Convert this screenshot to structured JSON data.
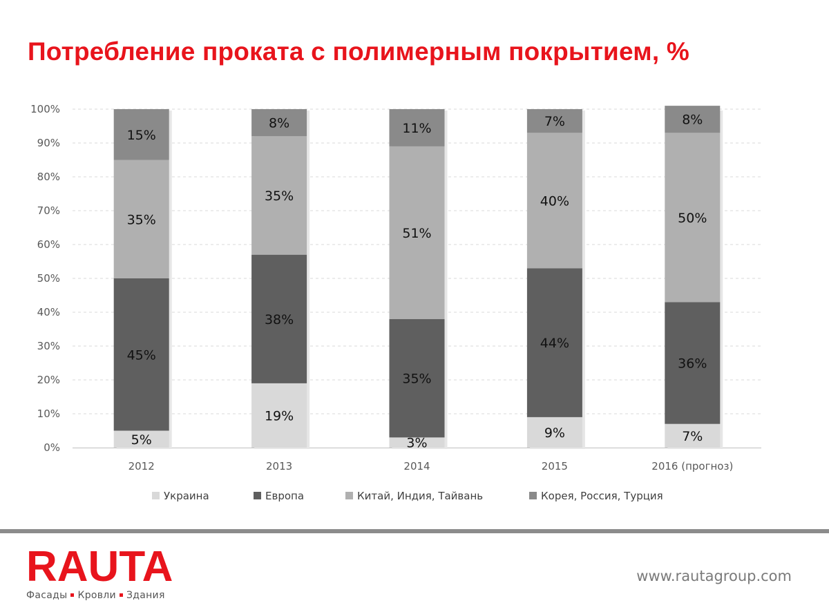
{
  "header": {
    "title": "Потребление проката с полимерным покрытием, %"
  },
  "chart_data": {
    "type": "bar",
    "stacked": true,
    "categories": [
      "2012",
      "2013",
      "2014",
      "2015",
      "2016 (прогноз)"
    ],
    "series": [
      {
        "name": "Украина",
        "color": "#d9d9d9",
        "values": [
          5,
          19,
          3,
          9,
          7
        ]
      },
      {
        "name": "Европа",
        "color": "#5f5f5f",
        "values": [
          45,
          38,
          35,
          44,
          36
        ]
      },
      {
        "name": "Китай, Индия, Тайвань",
        "color": "#b0b0b0",
        "values": [
          35,
          35,
          51,
          40,
          50
        ]
      },
      {
        "name": "Корея, Россия, Турция",
        "color": "#8a8a8a",
        "values": [
          15,
          8,
          11,
          7,
          8
        ]
      }
    ],
    "yticks": [
      "0%",
      "10%",
      "20%",
      "30%",
      "40%",
      "50%",
      "60%",
      "70%",
      "80%",
      "90%",
      "100%"
    ],
    "ylim": [
      0,
      100
    ],
    "grid": true,
    "legend": "bottom"
  },
  "footer": {
    "logo": "RAUTA",
    "tagline": [
      "Фасады",
      "Кровли",
      "Здания"
    ],
    "url": "www.rautagroup.com"
  }
}
